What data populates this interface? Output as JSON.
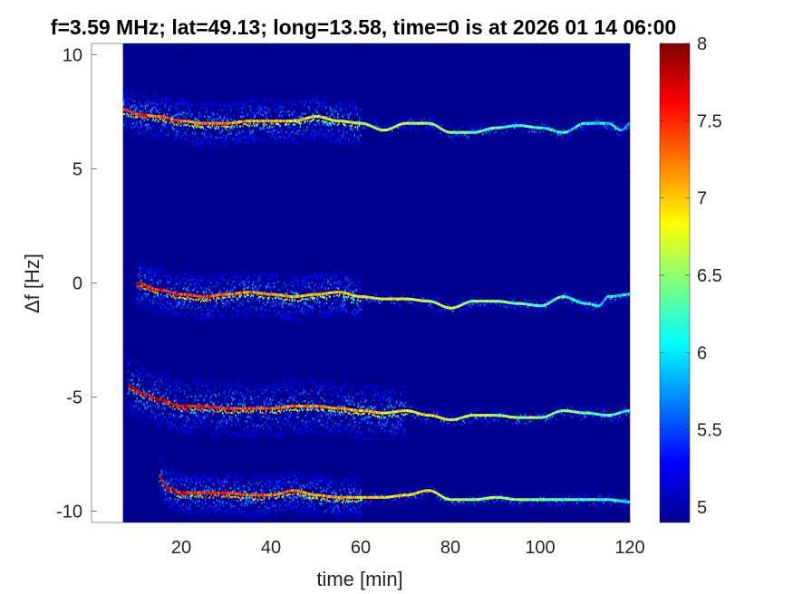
{
  "chart_data": {
    "type": "heatmap",
    "title": "f=3.59 MHz;  lat=49.13; long=13.58, time=0 is at 2026 01 14 06:00",
    "xlabel": "time [min]",
    "ylabel": "Δf [Hz]",
    "xlim": [
      0,
      120
    ],
    "ylim": [
      -10.5,
      10.5
    ],
    "x_ticks": [
      20,
      40,
      60,
      80,
      100,
      120
    ],
    "y_ticks": [
      -10,
      -5,
      0,
      5,
      10
    ],
    "colorbar": {
      "range": [
        4.9,
        8
      ],
      "ticks": [
        5,
        5.5,
        6,
        6.5,
        7,
        7.5,
        8
      ],
      "colormap": "jet"
    },
    "background_color": "#00008f",
    "data_start_min": 7,
    "traces": [
      {
        "points": [
          [
            7,
            7.6
          ],
          [
            10,
            7.4
          ],
          [
            15,
            7.3
          ],
          [
            20,
            7.1
          ],
          [
            25,
            7.0
          ],
          [
            30,
            7.0
          ],
          [
            35,
            7.1
          ],
          [
            40,
            7.1
          ],
          [
            45,
            7.1
          ],
          [
            50,
            7.3
          ],
          [
            55,
            7.1
          ],
          [
            60,
            7.0
          ],
          [
            65,
            6.7
          ],
          [
            70,
            7.0
          ],
          [
            75,
            7.0
          ],
          [
            80,
            6.6
          ],
          [
            85,
            6.6
          ],
          [
            90,
            6.8
          ],
          [
            95,
            6.9
          ],
          [
            100,
            6.8
          ],
          [
            105,
            6.6
          ],
          [
            110,
            7.0
          ],
          [
            115,
            7.0
          ],
          [
            118,
            6.7
          ],
          [
            120,
            7.0
          ]
        ],
        "peak": 7.5,
        "spread": 1.0,
        "spread_until": 60
      },
      {
        "points": [
          [
            10,
            0.0
          ],
          [
            15,
            -0.3
          ],
          [
            20,
            -0.5
          ],
          [
            25,
            -0.6
          ],
          [
            30,
            -0.5
          ],
          [
            35,
            -0.4
          ],
          [
            40,
            -0.5
          ],
          [
            45,
            -0.6
          ],
          [
            50,
            -0.5
          ],
          [
            55,
            -0.4
          ],
          [
            60,
            -0.6
          ],
          [
            65,
            -0.7
          ],
          [
            70,
            -0.7
          ],
          [
            75,
            -0.8
          ],
          [
            80,
            -1.1
          ],
          [
            85,
            -0.8
          ],
          [
            90,
            -0.8
          ],
          [
            95,
            -0.9
          ],
          [
            100,
            -1.0
          ],
          [
            105,
            -0.6
          ],
          [
            110,
            -0.9
          ],
          [
            113,
            -1.0
          ],
          [
            115,
            -0.6
          ],
          [
            120,
            -0.5
          ]
        ],
        "peak": 7.6,
        "spread": 1.0,
        "spread_until": 60
      },
      {
        "points": [
          [
            8,
            -4.5
          ],
          [
            12,
            -4.9
          ],
          [
            15,
            -5.1
          ],
          [
            20,
            -5.4
          ],
          [
            25,
            -5.4
          ],
          [
            30,
            -5.5
          ],
          [
            35,
            -5.5
          ],
          [
            40,
            -5.5
          ],
          [
            45,
            -5.4
          ],
          [
            50,
            -5.4
          ],
          [
            55,
            -5.5
          ],
          [
            60,
            -5.6
          ],
          [
            65,
            -5.7
          ],
          [
            70,
            -5.6
          ],
          [
            75,
            -5.8
          ],
          [
            80,
            -6.0
          ],
          [
            85,
            -5.8
          ],
          [
            90,
            -5.8
          ],
          [
            95,
            -5.9
          ],
          [
            100,
            -5.9
          ],
          [
            105,
            -5.6
          ],
          [
            110,
            -5.7
          ],
          [
            115,
            -5.8
          ],
          [
            120,
            -5.6
          ]
        ],
        "peak": 7.8,
        "spread": 1.2,
        "spread_until": 70
      },
      {
        "points": [
          [
            15,
            -8.5
          ],
          [
            17,
            -9.0
          ],
          [
            20,
            -9.2
          ],
          [
            25,
            -9.2
          ],
          [
            30,
            -9.2
          ],
          [
            35,
            -9.3
          ],
          [
            40,
            -9.3
          ],
          [
            45,
            -9.1
          ],
          [
            50,
            -9.3
          ],
          [
            55,
            -9.4
          ],
          [
            60,
            -9.4
          ],
          [
            65,
            -9.4
          ],
          [
            70,
            -9.3
          ],
          [
            75,
            -9.1
          ],
          [
            80,
            -9.5
          ],
          [
            85,
            -9.5
          ],
          [
            90,
            -9.4
          ],
          [
            95,
            -9.5
          ],
          [
            100,
            -9.5
          ],
          [
            105,
            -9.5
          ],
          [
            110,
            -9.5
          ],
          [
            115,
            -9.5
          ],
          [
            120,
            -9.6
          ]
        ],
        "peak": 7.7,
        "spread": 0.9,
        "spread_until": 60
      }
    ]
  }
}
